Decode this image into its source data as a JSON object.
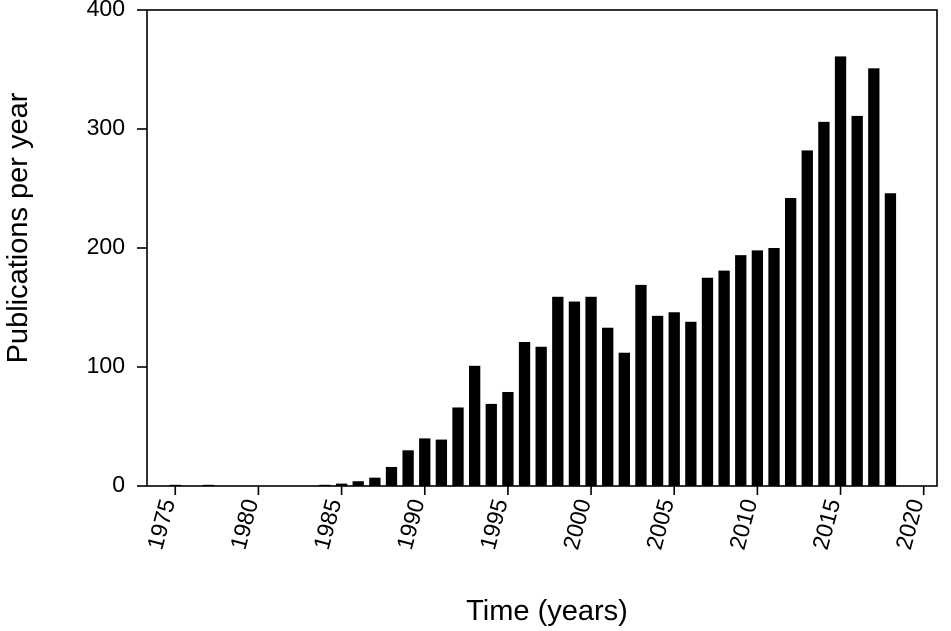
{
  "chart_data": {
    "type": "bar",
    "title": "",
    "xlabel": "Time (years)",
    "ylabel": "Publications per year",
    "xlim": [
      1973.3,
      2020.8
    ],
    "ylim": [
      0,
      400
    ],
    "x_ticks": [
      1975,
      1980,
      1985,
      1990,
      1995,
      2000,
      2005,
      2010,
      2015,
      2020
    ],
    "y_ticks": [
      0,
      100,
      200,
      300,
      400
    ],
    "grid": false,
    "legend": "none",
    "bar_color": "#000000",
    "x": [
      1975,
      1976,
      1977,
      1978,
      1979,
      1980,
      1981,
      1982,
      1983,
      1984,
      1985,
      1986,
      1987,
      1988,
      1989,
      1990,
      1991,
      1992,
      1993,
      1994,
      1995,
      1996,
      1997,
      1998,
      1999,
      2000,
      2001,
      2002,
      2003,
      2004,
      2005,
      2006,
      2007,
      2008,
      2009,
      2010,
      2011,
      2012,
      2013,
      2014,
      2015,
      2016,
      2017,
      2018
    ],
    "values": [
      1,
      0,
      1,
      0,
      0,
      0,
      0,
      0,
      0,
      1,
      2,
      4,
      7,
      16,
      30,
      40,
      39,
      66,
      101,
      69,
      79,
      121,
      117,
      159,
      155,
      159,
      133,
      112,
      169,
      143,
      146,
      138,
      175,
      181,
      194,
      198,
      200,
      242,
      282,
      306,
      361,
      311,
      351,
      246
    ]
  }
}
